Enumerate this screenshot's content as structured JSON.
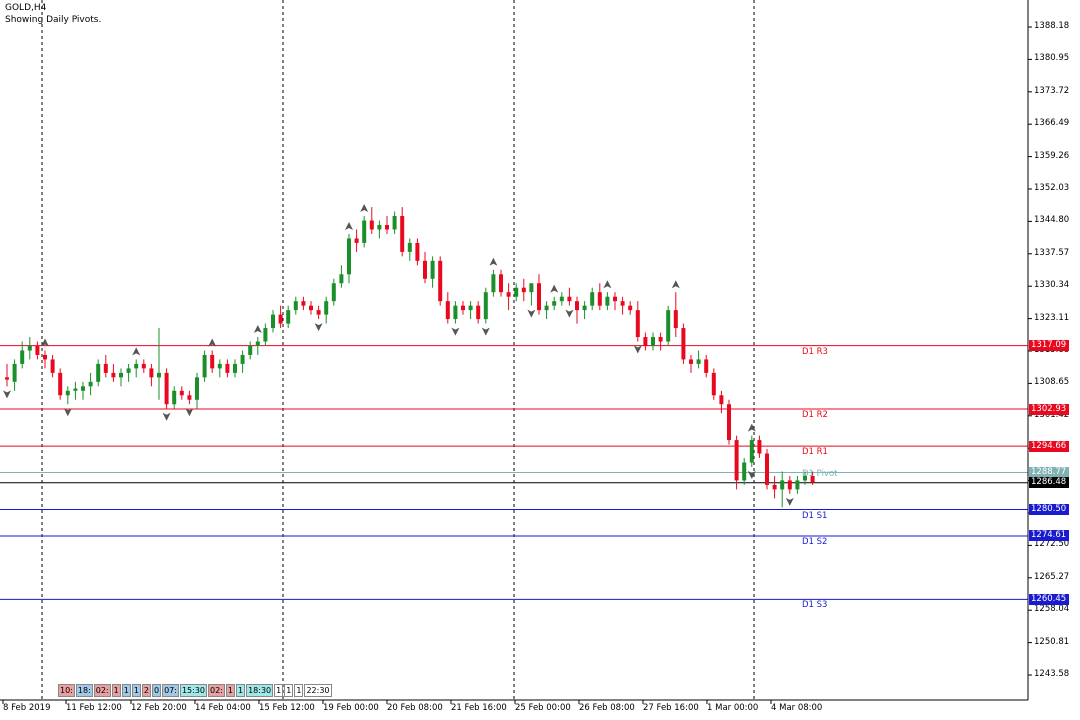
{
  "header": {
    "symbol_title": "GOLD,H4",
    "indicator_caption": "Showing Daily Pivots."
  },
  "colors": {
    "background": "#ffffff",
    "bull_candle": "#1a8f2a",
    "bear_candle": "#e8091f",
    "resistance_line": "#e8091f",
    "support_line": "#1a1ad0",
    "pivot_line": "#7fb3b3",
    "current_price_line": "#000000",
    "fractal_marker": "#555555"
  },
  "y_axis": {
    "ticks": [
      "1388.18",
      "1380.95",
      "1373.72",
      "1366.49",
      "1359.26",
      "1352.03",
      "1344.80",
      "1337.57",
      "1330.34",
      "1323.11",
      "1315.88",
      "1308.65",
      "1301.42",
      "1294.19",
      "1287.96",
      "1280.73",
      "1272.50",
      "1265.27",
      "1258.04",
      "1250.81",
      "1243.58"
    ]
  },
  "x_axis": {
    "ticks": [
      "8 Feb 2019",
      "11 Feb 12:00",
      "12 Feb 20:00",
      "14 Feb 04:00",
      "15 Feb 12:00",
      "19 Feb 00:00",
      "20 Feb 08:00",
      "21 Feb 16:00",
      "25 Feb 00:00",
      "26 Feb 08:00",
      "27 Feb 16:00",
      "1 Mar 00:00",
      "4 Mar 08:00"
    ]
  },
  "pivot_levels": [
    {
      "label": "D1 R3",
      "value": "1317.09",
      "kind": "resistance"
    },
    {
      "label": "D1 R2",
      "value": "1302.93",
      "kind": "resistance"
    },
    {
      "label": "D1 R1",
      "value": "1294.66",
      "kind": "resistance"
    },
    {
      "label": "D1 Pivot",
      "value": "1288.77",
      "kind": "pivot"
    },
    {
      "label": "D1 S1",
      "value": "1280.50",
      "kind": "support"
    },
    {
      "label": "D1 S2",
      "value": "1274.61",
      "kind": "support"
    },
    {
      "label": "D1 S3",
      "value": "1260.45",
      "kind": "support"
    }
  ],
  "current_price": "1286.48",
  "session_strip": [
    {
      "text": "10:",
      "color": "#e8a0a0"
    },
    {
      "text": "18:",
      "color": "#a0c8e8"
    },
    {
      "text": "02:",
      "color": "#e8a0a0"
    },
    {
      "text": "1",
      "color": "#e8a0a0"
    },
    {
      "text": "1",
      "color": "#a0c8e8"
    },
    {
      "text": "1",
      "color": "#a0c8e8"
    },
    {
      "text": "2",
      "color": "#e8a0a0"
    },
    {
      "text": "0",
      "color": "#a0c8e8"
    },
    {
      "text": "07:",
      "color": "#a0c8e8"
    },
    {
      "text": "15:30",
      "color": "#a0e8e8"
    },
    {
      "text": "02:",
      "color": "#e8a0a0"
    },
    {
      "text": "1",
      "color": "#e8a0a0"
    },
    {
      "text": "1",
      "color": "#a0e8e8"
    },
    {
      "text": "18:30",
      "color": "#a0e8e8"
    },
    {
      "text": "1",
      "color": "#ffffff"
    },
    {
      "text": "1",
      "color": "#ffffff"
    },
    {
      "text": "1",
      "color": "#ffffff"
    },
    {
      "text": "22:30",
      "color": "#ffffff"
    }
  ],
  "chart_data": {
    "type": "candlestick",
    "symbol": "GOLD",
    "timeframe": "H4",
    "price_scale": [
      1240.0,
      1392.0
    ],
    "candles": [
      {
        "o": 1310.0,
        "h": 1313.0,
        "l": 1308.0,
        "c": 1309.5
      },
      {
        "o": 1309.0,
        "h": 1314.0,
        "l": 1307.0,
        "c": 1313.0
      },
      {
        "o": 1313.0,
        "h": 1318.0,
        "l": 1312.0,
        "c": 1316.0
      },
      {
        "o": 1316.0,
        "h": 1319.0,
        "l": 1314.0,
        "c": 1317.0
      },
      {
        "o": 1317.0,
        "h": 1318.0,
        "l": 1314.0,
        "c": 1315.0
      },
      {
        "o": 1315.0,
        "h": 1316.0,
        "l": 1312.0,
        "c": 1314.0
      },
      {
        "o": 1314.0,
        "h": 1315.0,
        "l": 1310.0,
        "c": 1311.0
      },
      {
        "o": 1311.0,
        "h": 1312.0,
        "l": 1305.0,
        "c": 1306.0
      },
      {
        "o": 1306.0,
        "h": 1308.0,
        "l": 1304.0,
        "c": 1307.0
      },
      {
        "o": 1307.0,
        "h": 1309.0,
        "l": 1305.0,
        "c": 1307.5
      },
      {
        "o": 1307.0,
        "h": 1309.0,
        "l": 1305.0,
        "c": 1308.0
      },
      {
        "o": 1308.0,
        "h": 1311.0,
        "l": 1306.0,
        "c": 1309.0
      },
      {
        "o": 1309.0,
        "h": 1314.0,
        "l": 1308.0,
        "c": 1313.0
      },
      {
        "o": 1313.0,
        "h": 1315.0,
        "l": 1310.0,
        "c": 1311.0
      },
      {
        "o": 1311.0,
        "h": 1313.0,
        "l": 1309.0,
        "c": 1310.0
      },
      {
        "o": 1310.0,
        "h": 1312.0,
        "l": 1308.0,
        "c": 1311.0
      },
      {
        "o": 1311.0,
        "h": 1313.0,
        "l": 1309.0,
        "c": 1312.0
      },
      {
        "o": 1312.0,
        "h": 1314.0,
        "l": 1310.0,
        "c": 1313.0
      },
      {
        "o": 1313.0,
        "h": 1314.0,
        "l": 1311.0,
        "c": 1312.0
      },
      {
        "o": 1312.0,
        "h": 1313.0,
        "l": 1308.0,
        "c": 1310.0
      },
      {
        "o": 1310.0,
        "h": 1321.0,
        "l": 1305.0,
        "c": 1311.0
      },
      {
        "o": 1311.0,
        "h": 1312.0,
        "l": 1303.0,
        "c": 1304.0
      },
      {
        "o": 1304.0,
        "h": 1308.0,
        "l": 1303.0,
        "c": 1307.0
      },
      {
        "o": 1307.0,
        "h": 1308.0,
        "l": 1305.0,
        "c": 1306.0
      },
      {
        "o": 1306.0,
        "h": 1307.0,
        "l": 1304.0,
        "c": 1305.0
      },
      {
        "o": 1305.0,
        "h": 1311.0,
        "l": 1303.0,
        "c": 1310.0
      },
      {
        "o": 1310.0,
        "h": 1316.0,
        "l": 1309.0,
        "c": 1315.0
      },
      {
        "o": 1315.0,
        "h": 1316.0,
        "l": 1311.0,
        "c": 1312.0
      },
      {
        "o": 1312.0,
        "h": 1314.0,
        "l": 1310.0,
        "c": 1313.0
      },
      {
        "o": 1313.0,
        "h": 1314.0,
        "l": 1310.0,
        "c": 1311.0
      },
      {
        "o": 1311.0,
        "h": 1314.0,
        "l": 1310.0,
        "c": 1313.0
      },
      {
        "o": 1313.0,
        "h": 1316.0,
        "l": 1311.0,
        "c": 1315.0
      },
      {
        "o": 1315.0,
        "h": 1318.0,
        "l": 1314.0,
        "c": 1317.0
      },
      {
        "o": 1317.0,
        "h": 1319.0,
        "l": 1315.0,
        "c": 1318.0
      },
      {
        "o": 1318.0,
        "h": 1322.0,
        "l": 1317.0,
        "c": 1321.0
      },
      {
        "o": 1321.0,
        "h": 1325.0,
        "l": 1320.0,
        "c": 1324.0
      },
      {
        "o": 1324.0,
        "h": 1326.0,
        "l": 1321.0,
        "c": 1322.0
      },
      {
        "o": 1322.0,
        "h": 1326.0,
        "l": 1321.0,
        "c": 1325.0
      },
      {
        "o": 1325.0,
        "h": 1328.0,
        "l": 1324.0,
        "c": 1327.0
      },
      {
        "o": 1327.0,
        "h": 1328.0,
        "l": 1325.0,
        "c": 1326.0
      },
      {
        "o": 1326.0,
        "h": 1327.0,
        "l": 1324.0,
        "c": 1325.0
      },
      {
        "o": 1325.0,
        "h": 1326.0,
        "l": 1323.0,
        "c": 1324.0
      },
      {
        "o": 1324.0,
        "h": 1328.0,
        "l": 1322.0,
        "c": 1327.0
      },
      {
        "o": 1327.0,
        "h": 1332.0,
        "l": 1326.0,
        "c": 1331.0
      },
      {
        "o": 1331.0,
        "h": 1335.0,
        "l": 1330.0,
        "c": 1333.0
      },
      {
        "o": 1333.0,
        "h": 1342.0,
        "l": 1331.0,
        "c": 1341.0
      },
      {
        "o": 1341.0,
        "h": 1343.0,
        "l": 1338.0,
        "c": 1340.0
      },
      {
        "o": 1340.0,
        "h": 1346.0,
        "l": 1339.0,
        "c": 1345.0
      },
      {
        "o": 1345.0,
        "h": 1348.0,
        "l": 1342.0,
        "c": 1343.0
      },
      {
        "o": 1343.0,
        "h": 1345.0,
        "l": 1341.0,
        "c": 1344.0
      },
      {
        "o": 1344.0,
        "h": 1346.0,
        "l": 1342.0,
        "c": 1343.0
      },
      {
        "o": 1343.0,
        "h": 1347.0,
        "l": 1342.0,
        "c": 1346.0
      },
      {
        "o": 1346.0,
        "h": 1348.0,
        "l": 1337.0,
        "c": 1338.0
      },
      {
        "o": 1338.0,
        "h": 1341.0,
        "l": 1336.0,
        "c": 1340.0
      },
      {
        "o": 1340.0,
        "h": 1341.0,
        "l": 1335.0,
        "c": 1336.0
      },
      {
        "o": 1336.0,
        "h": 1338.0,
        "l": 1331.0,
        "c": 1332.0
      },
      {
        "o": 1332.0,
        "h": 1337.0,
        "l": 1330.0,
        "c": 1336.0
      },
      {
        "o": 1336.0,
        "h": 1337.0,
        "l": 1326.0,
        "c": 1327.0
      },
      {
        "o": 1327.0,
        "h": 1329.0,
        "l": 1322.0,
        "c": 1323.0
      },
      {
        "o": 1323.0,
        "h": 1327.0,
        "l": 1322.0,
        "c": 1326.0
      },
      {
        "o": 1326.0,
        "h": 1327.0,
        "l": 1324.0,
        "c": 1325.0
      },
      {
        "o": 1325.0,
        "h": 1327.0,
        "l": 1323.0,
        "c": 1326.0
      },
      {
        "o": 1326.0,
        "h": 1327.0,
        "l": 1322.0,
        "c": 1323.0
      },
      {
        "o": 1323.0,
        "h": 1330.0,
        "l": 1322.0,
        "c": 1329.0
      },
      {
        "o": 1329.0,
        "h": 1334.0,
        "l": 1328.0,
        "c": 1333.0
      },
      {
        "o": 1333.0,
        "h": 1334.0,
        "l": 1328.0,
        "c": 1329.0
      },
      {
        "o": 1329.0,
        "h": 1331.0,
        "l": 1325.0,
        "c": 1328.0
      },
      {
        "o": 1328.0,
        "h": 1331.0,
        "l": 1327.0,
        "c": 1330.0
      },
      {
        "o": 1330.0,
        "h": 1332.0,
        "l": 1327.0,
        "c": 1329.0
      },
      {
        "o": 1329.0,
        "h": 1331.0,
        "l": 1326.0,
        "c": 1331.0
      },
      {
        "o": 1331.0,
        "h": 1333.0,
        "l": 1324.0,
        "c": 1325.0
      },
      {
        "o": 1325.0,
        "h": 1327.0,
        "l": 1323.0,
        "c": 1326.0
      },
      {
        "o": 1326.0,
        "h": 1328.0,
        "l": 1325.0,
        "c": 1327.0
      },
      {
        "o": 1327.0,
        "h": 1329.0,
        "l": 1326.0,
        "c": 1328.0
      },
      {
        "o": 1328.0,
        "h": 1330.0,
        "l": 1326.0,
        "c": 1327.0
      },
      {
        "o": 1327.0,
        "h": 1328.0,
        "l": 1322.0,
        "c": 1325.0
      },
      {
        "o": 1325.0,
        "h": 1327.0,
        "l": 1323.0,
        "c": 1326.0
      },
      {
        "o": 1326.0,
        "h": 1330.0,
        "l": 1325.0,
        "c": 1329.0
      },
      {
        "o": 1329.0,
        "h": 1331.0,
        "l": 1325.0,
        "c": 1326.0
      },
      {
        "o": 1326.0,
        "h": 1329.0,
        "l": 1325.0,
        "c": 1328.0
      },
      {
        "o": 1328.0,
        "h": 1329.0,
        "l": 1325.0,
        "c": 1327.0
      },
      {
        "o": 1327.0,
        "h": 1328.0,
        "l": 1324.0,
        "c": 1326.0
      },
      {
        "o": 1326.0,
        "h": 1327.0,
        "l": 1324.0,
        "c": 1325.0
      },
      {
        "o": 1325.0,
        "h": 1327.0,
        "l": 1318.0,
        "c": 1319.0
      },
      {
        "o": 1319.0,
        "h": 1320.0,
        "l": 1316.0,
        "c": 1317.0
      },
      {
        "o": 1317.0,
        "h": 1320.0,
        "l": 1316.0,
        "c": 1319.0
      },
      {
        "o": 1319.0,
        "h": 1320.0,
        "l": 1316.0,
        "c": 1318.0
      },
      {
        "o": 1318.0,
        "h": 1326.0,
        "l": 1317.0,
        "c": 1325.0
      },
      {
        "o": 1325.0,
        "h": 1329.0,
        "l": 1319.0,
        "c": 1321.0
      },
      {
        "o": 1321.0,
        "h": 1322.0,
        "l": 1313.0,
        "c": 1314.0
      },
      {
        "o": 1314.0,
        "h": 1315.0,
        "l": 1311.0,
        "c": 1313.0
      },
      {
        "o": 1313.0,
        "h": 1316.0,
        "l": 1312.0,
        "c": 1314.0
      },
      {
        "o": 1314.0,
        "h": 1315.0,
        "l": 1310.0,
        "c": 1311.0
      },
      {
        "o": 1311.0,
        "h": 1312.0,
        "l": 1305.0,
        "c": 1306.0
      },
      {
        "o": 1306.0,
        "h": 1307.0,
        "l": 1302.0,
        "c": 1304.0
      },
      {
        "o": 1304.0,
        "h": 1305.0,
        "l": 1295.0,
        "c": 1296.0
      },
      {
        "o": 1296.0,
        "h": 1297.0,
        "l": 1285.0,
        "c": 1287.0
      },
      {
        "o": 1287.0,
        "h": 1292.0,
        "l": 1286.0,
        "c": 1291.0
      },
      {
        "o": 1291.0,
        "h": 1297.0,
        "l": 1290.0,
        "c": 1296.0
      },
      {
        "o": 1296.0,
        "h": 1297.0,
        "l": 1292.0,
        "c": 1293.0
      },
      {
        "o": 1293.0,
        "h": 1294.0,
        "l": 1285.0,
        "c": 1286.0
      },
      {
        "o": 1286.0,
        "h": 1288.0,
        "l": 1283.0,
        "c": 1285.0
      },
      {
        "o": 1285.0,
        "h": 1289.0,
        "l": 1281.0,
        "c": 1287.0
      },
      {
        "o": 1287.0,
        "h": 1288.0,
        "l": 1284.0,
        "c": 1285.0
      },
      {
        "o": 1285.0,
        "h": 1288.0,
        "l": 1284.0,
        "c": 1287.0
      },
      {
        "o": 1287.0,
        "h": 1289.0,
        "l": 1286.0,
        "c": 1288.0
      },
      {
        "o": 1288.0,
        "h": 1289.0,
        "l": 1286.0,
        "c": 1286.5
      }
    ],
    "fractals_up": [
      5,
      17,
      27,
      33,
      45,
      47,
      64,
      72,
      79,
      88,
      98
    ],
    "fractals_down": [
      0,
      8,
      21,
      24,
      41,
      59,
      63,
      69,
      74,
      83,
      98,
      103
    ]
  }
}
